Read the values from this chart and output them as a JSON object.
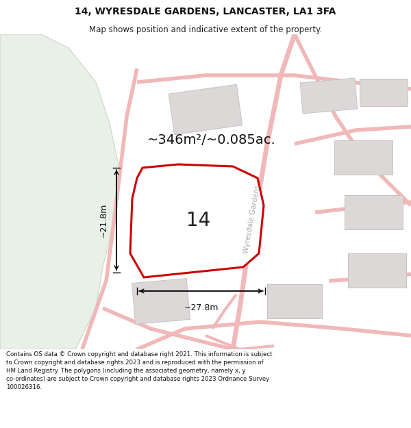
{
  "title_line1": "14, WYRESDALE GARDENS, LANCASTER, LA1 3FA",
  "title_line2": "Map shows position and indicative extent of the property.",
  "footer_text": "Contains OS data © Crown copyright and database right 2021. This information is subject to Crown copyright and database rights 2023 and is reproduced with the permission of HM Land Registry. The polygons (including the associated geometry, namely x, y co-ordinates) are subject to Crown copyright and database rights 2023 Ordnance Survey 100026316.",
  "map_bg": "#ffffff",
  "green_color": "#e8f0e8",
  "green_edge": "#c8d8c0",
  "property_fill": "#f0eeee",
  "property_outline": "#cc0000",
  "road_color": "#f0b8b8",
  "building_color": "#ddd8d8",
  "building_edge": "#c8c0c0",
  "area_label": "~346m²/~0.085ac.",
  "number_label": "14",
  "dim_width": "~27.8m",
  "dim_height": "~21.8m",
  "road_label": "Wyresdale Gardens",
  "title_fontsize": 10,
  "subtitle_fontsize": 8.5,
  "footer_fontsize": 6.2,
  "label_fontsize": 14,
  "number_fontsize": 20,
  "dim_fontsize": 9
}
